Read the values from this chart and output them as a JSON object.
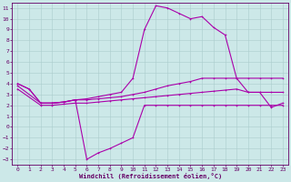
{
  "xlabel": "Windchill (Refroidissement éolien,°C)",
  "bg_color": "#cce8e8",
  "line_color": "#aa00aa",
  "grid_color": "#aacccc",
  "xticks": [
    0,
    1,
    2,
    3,
    4,
    5,
    6,
    7,
    8,
    9,
    10,
    11,
    12,
    13,
    14,
    15,
    16,
    17,
    18,
    19,
    20,
    21,
    22,
    23
  ],
  "yticks": [
    -3,
    -2,
    -1,
    0,
    1,
    2,
    3,
    4,
    5,
    6,
    7,
    8,
    9,
    10,
    11
  ],
  "xlim": [
    -0.5,
    23.5
  ],
  "ylim": [
    -3.5,
    11.5
  ],
  "line1_x": [
    0,
    1,
    2,
    3,
    4,
    5,
    6,
    7,
    8,
    9,
    10,
    11,
    12,
    13,
    14,
    15,
    16,
    17,
    18,
    19,
    20,
    21,
    22,
    23
  ],
  "line1_y": [
    4.0,
    3.5,
    2.2,
    2.2,
    2.3,
    2.5,
    2.6,
    2.8,
    3.0,
    3.2,
    4.5,
    9.0,
    11.2,
    11.0,
    10.5,
    10.0,
    10.2,
    9.2,
    8.5,
    4.5,
    3.2,
    3.2,
    1.8,
    2.2
  ],
  "line2_x": [
    0,
    2,
    3,
    4,
    5,
    6,
    7,
    8,
    9,
    10,
    11,
    12,
    13,
    14,
    15,
    16,
    17,
    18,
    19,
    20,
    21,
    22,
    23
  ],
  "line2_y": [
    3.8,
    2.2,
    2.2,
    2.3,
    2.5,
    2.5,
    2.6,
    2.7,
    2.8,
    3.0,
    3.2,
    3.5,
    3.8,
    4.0,
    4.2,
    4.5,
    4.5,
    4.5,
    4.5,
    4.5,
    4.5,
    4.5,
    4.5
  ],
  "line3_x": [
    0,
    2,
    3,
    4,
    5,
    6,
    7,
    8,
    9,
    10,
    11,
    12,
    13,
    14,
    15,
    16,
    17,
    18,
    19,
    20,
    21,
    22,
    23
  ],
  "line3_y": [
    3.5,
    2.0,
    2.0,
    2.1,
    2.2,
    2.2,
    2.3,
    2.4,
    2.5,
    2.6,
    2.7,
    2.8,
    2.9,
    3.0,
    3.1,
    3.2,
    3.3,
    3.4,
    3.5,
    3.2,
    3.2,
    3.2,
    3.2
  ],
  "line4_x": [
    0,
    1,
    2,
    3,
    4,
    5,
    6,
    7,
    8,
    9,
    10,
    11,
    12,
    13,
    14,
    15,
    16,
    17,
    18,
    19,
    20,
    21,
    22,
    23
  ],
  "line4_y": [
    4.0,
    3.5,
    2.2,
    2.2,
    2.3,
    2.5,
    -3.0,
    -2.4,
    -2.0,
    -1.5,
    -1.0,
    2.0,
    2.0,
    2.0,
    2.0,
    2.0,
    2.0,
    2.0,
    2.0,
    2.0,
    2.0,
    2.0,
    2.0,
    2.0
  ]
}
